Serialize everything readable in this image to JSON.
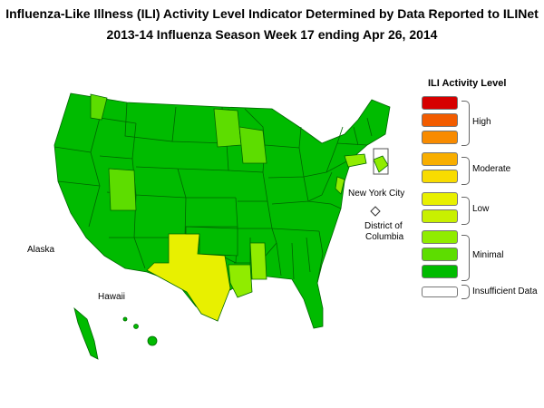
{
  "title_line1": "Influenza-Like Illness (ILI) Activity Level Indicator Determined by Data Reported to ILINet",
  "title_line2": "2013-14  Influenza Season Week  17 ending Apr 26, 2014",
  "legend": {
    "title": "ILI Activity Level",
    "levels": [
      {
        "level": 10,
        "color": "#d60000"
      },
      {
        "level": 9,
        "color": "#f25c00"
      },
      {
        "level": 8,
        "color": "#f88b00"
      },
      {
        "level": 7,
        "color": "#f8ae00"
      },
      {
        "level": 6,
        "color": "#f8dc00"
      },
      {
        "level": 5,
        "color": "#e8f000"
      },
      {
        "level": 4,
        "color": "#c8f000"
      },
      {
        "level": 3,
        "color": "#90ec00"
      },
      {
        "level": 2,
        "color": "#5ddd00"
      },
      {
        "level": 1,
        "color": "#00bb00"
      },
      {
        "level": 0,
        "color": "#ffffff"
      }
    ],
    "groups": [
      "High",
      "Moderate",
      "Low",
      "Minimal",
      "Insufficient Data"
    ]
  },
  "labels": {
    "nyc": "New York City",
    "dc_line1": "District of",
    "dc_line2": "Columbia",
    "alaska": "Alaska",
    "hawaii": "Hawaii"
  },
  "map_colors": {
    "minimal_low": "#00bb00",
    "minimal_mid": "#5ddd00",
    "minimal_high": "#90ec00",
    "low": "#e8f000",
    "insufficient": "#ffffff"
  }
}
